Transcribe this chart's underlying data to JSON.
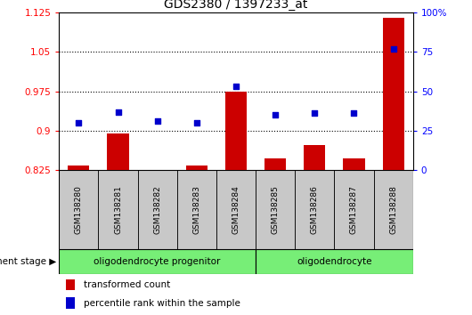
{
  "title": "GDS2380 / 1397233_at",
  "samples": [
    "GSM138280",
    "GSM138281",
    "GSM138282",
    "GSM138283",
    "GSM138284",
    "GSM138285",
    "GSM138286",
    "GSM138287",
    "GSM138288"
  ],
  "transformed_count": [
    0.833,
    0.895,
    0.826,
    0.833,
    0.975,
    0.848,
    0.873,
    0.847,
    1.115
  ],
  "percentile_rank": [
    30,
    37,
    31,
    30,
    53,
    35,
    36,
    36,
    77
  ],
  "ylim_left": [
    0.825,
    1.125
  ],
  "ylim_right": [
    0,
    100
  ],
  "yticks_left": [
    0.825,
    0.9,
    0.975,
    1.05,
    1.125
  ],
  "yticks_right": [
    0,
    25,
    50,
    75,
    100
  ],
  "ytick_labels_left": [
    "0.825",
    "0.9",
    "0.975",
    "1.05",
    "1.125"
  ],
  "ytick_labels_right": [
    "0",
    "25",
    "50",
    "75",
    "100%"
  ],
  "groups": [
    {
      "label": "oligodendrocyte progenitor",
      "indices": [
        0,
        1,
        2,
        3,
        4
      ]
    },
    {
      "label": "oligodendrocyte",
      "indices": [
        5,
        6,
        7,
        8
      ]
    }
  ],
  "bar_color": "#cc0000",
  "dot_color": "#0000cc",
  "bar_baseline": 0.825,
  "bg_color": "#ffffff",
  "stage_label": "development stage",
  "legend_bar": "transformed count",
  "legend_dot": "percentile rank within the sample",
  "tick_area_color": "#c8c8c8",
  "stage_color": "#77ee77",
  "stage_border_color": "#000000",
  "grid_yticks": [
    0.9,
    0.975,
    1.05
  ]
}
